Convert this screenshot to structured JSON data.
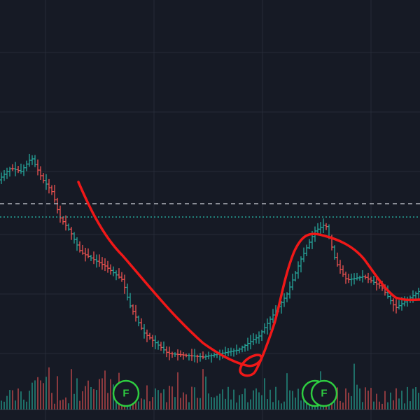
{
  "markers": [
    {
      "label": "F"
    },
    {
      "label": "F"
    },
    {
      "label": "F"
    }
  ]
}
